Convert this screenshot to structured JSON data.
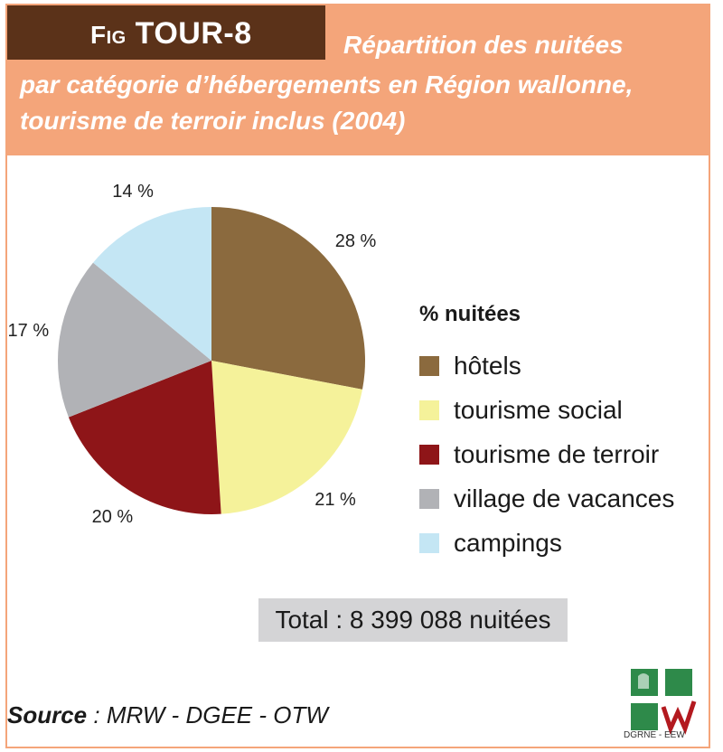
{
  "header": {
    "fig_prefix": "Fig",
    "fig_id": "TOUR-8",
    "title_line1": "Répartition des nuitées",
    "title_line2": "par catégorie d’hébergements en Région wallonne,",
    "title_line3": "tourisme de terroir inclus (2004)"
  },
  "chart_data": {
    "type": "pie",
    "title": "Répartition des nuitées par catégorie d’hébergements en Région wallonne, tourisme de terroir inclus (2004)",
    "legend_title": "% nuitées",
    "legend_position": "right",
    "slices": [
      {
        "name": "hôtels",
        "value": 28,
        "label": "28 %",
        "color": "#8b6a3e"
      },
      {
        "name": "tourisme social",
        "value": 21,
        "label": "21 %",
        "color": "#f5f29a"
      },
      {
        "name": "tourisme de terroir",
        "value": 20,
        "label": "20 %",
        "color": "#8e1518"
      },
      {
        "name": "village de vacances",
        "value": 17,
        "label": "17 %",
        "color": "#b1b2b6"
      },
      {
        "name": "campings",
        "value": 14,
        "label": "14 %",
        "color": "#c4e6f4"
      }
    ]
  },
  "total": "Total : 8 399 088 nuitées",
  "source": {
    "label": "Source",
    "text": " : MRW - DGEE - OTW"
  },
  "logo": {
    "text": "DGRNE - EEW"
  }
}
